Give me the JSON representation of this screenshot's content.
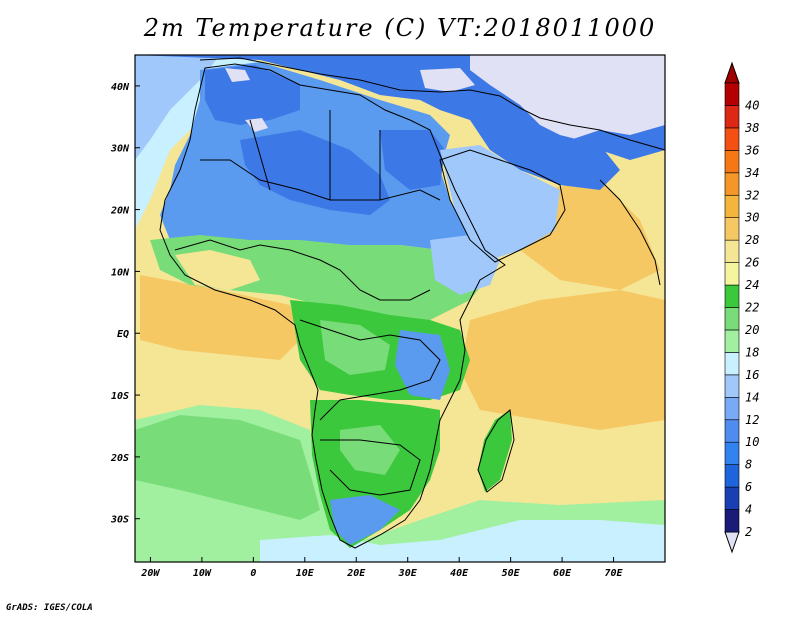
{
  "title": "2m Temperature (C) VT:2018011000",
  "credit": "GrADS: IGES/COLA",
  "map": {
    "lon_range": [
      -23,
      80
    ],
    "lat_range": [
      -37,
      45
    ],
    "lon_ticks": [
      {
        "value": -20,
        "label": "20W"
      },
      {
        "value": -10,
        "label": "10W"
      },
      {
        "value": 0,
        "label": "0"
      },
      {
        "value": 10,
        "label": "10E"
      },
      {
        "value": 20,
        "label": "20E"
      },
      {
        "value": 30,
        "label": "30E"
      },
      {
        "value": 40,
        "label": "40E"
      },
      {
        "value": 50,
        "label": "50E"
      },
      {
        "value": 60,
        "label": "60E"
      },
      {
        "value": 70,
        "label": "70E"
      }
    ],
    "lat_ticks": [
      {
        "value": 40,
        "label": "40N"
      },
      {
        "value": 30,
        "label": "30N"
      },
      {
        "value": 20,
        "label": "20N"
      },
      {
        "value": 10,
        "label": "10N"
      },
      {
        "value": 0,
        "label": "EQ"
      },
      {
        "value": -10,
        "label": "10S"
      },
      {
        "value": -20,
        "label": "20S"
      },
      {
        "value": -30,
        "label": "30S"
      }
    ]
  },
  "colorbar": {
    "levels": [
      "2",
      "4",
      "6",
      "8",
      "10",
      "12",
      "14",
      "16",
      "18",
      "20",
      "22",
      "24",
      "26",
      "28",
      "30",
      "32",
      "34",
      "36",
      "38",
      "40"
    ],
    "colors": [
      "#1a1a78",
      "#1a3fb4",
      "#1e64dc",
      "#3282f0",
      "#508cf0",
      "#78aaf5",
      "#a0c8fa",
      "#c8f0ff",
      "#a0f0a0",
      "#78dc78",
      "#3cc83c",
      "#f5f5a0",
      "#f5e696",
      "#f5c864",
      "#f5b43c",
      "#f59628",
      "#f57814",
      "#f55014",
      "#dc2814",
      "#b40000"
    ],
    "under_color": "#e1e1f5",
    "over_color": "#a00000"
  },
  "field_colors": {
    "frigid_land": "#e1e1f5",
    "cold": "#3c78e6",
    "cool": "#5a9bf0",
    "mild": "#a0c8fa",
    "pale": "#c8f0ff",
    "temperate": "#78dc78",
    "green": "#3cc83c",
    "warm_ocean": "#f5e696",
    "hot": "#f5c864",
    "southern_ocean": "#a0f0a0"
  }
}
